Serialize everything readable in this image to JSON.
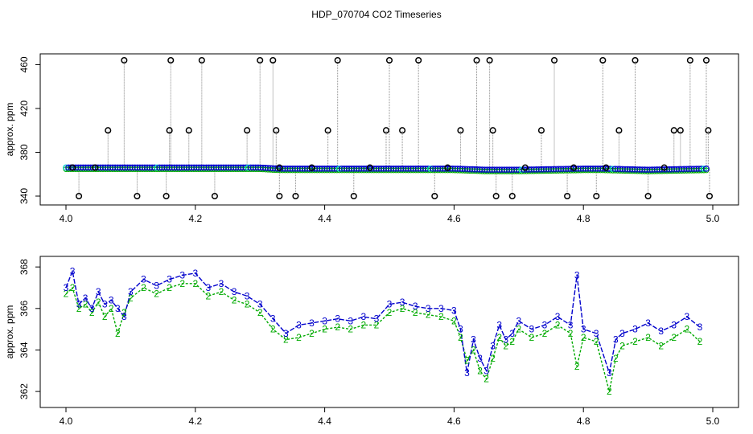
{
  "chart_data": [
    {
      "type": "scatter",
      "title": "HDP_070704  CO2 Timeseries",
      "xlabel": "",
      "ylabel": "approx. ppm",
      "xlim": [
        4.0,
        5.0
      ],
      "ylim": [
        340,
        464
      ],
      "xticks": [
        "4.0",
        "4.2",
        "4.4",
        "4.6",
        "4.8",
        "5.0"
      ],
      "yticks": [
        "340",
        "380",
        "420",
        "460"
      ],
      "colors": {
        "black_points": "#000000",
        "blue_points": "#0000cc",
        "green_points": "#00aa00",
        "cyan_points": "#00cccc",
        "spike_lines": "#888888"
      },
      "series": [
        {
          "description": "dense baseline points (blue/green/cyan circles)",
          "x": [
            4.0,
            4.05,
            4.1,
            4.15,
            4.2,
            4.25,
            4.3,
            4.33,
            4.4,
            4.5,
            4.6,
            4.65,
            4.7,
            4.8,
            4.83,
            4.9,
            4.99
          ],
          "y": [
            366,
            366,
            366,
            366,
            366,
            366,
            366,
            365,
            365,
            365,
            365,
            364,
            364,
            365,
            365,
            364,
            365
          ]
        },
        {
          "description": "black outlier circles",
          "x": [
            4.01,
            4.02,
            4.045,
            4.065,
            4.09,
            4.11,
            4.155,
            4.16,
            4.162,
            4.19,
            4.21,
            4.23,
            4.28,
            4.3,
            4.32,
            4.325,
            4.33,
            4.33,
            4.355,
            4.38,
            4.405,
            4.42,
            4.445,
            4.47,
            4.495,
            4.5,
            4.52,
            4.545,
            4.57,
            4.59,
            4.61,
            4.635,
            4.655,
            4.66,
            4.665,
            4.69,
            4.71,
            4.735,
            4.755,
            4.775,
            4.785,
            4.82,
            4.83,
            4.835,
            4.855,
            4.88,
            4.9,
            4.925,
            4.94,
            4.95,
            4.965,
            4.99,
            4.993,
            4.995
          ],
          "y": [
            366,
            340,
            366,
            400,
            464,
            340,
            340,
            400,
            464,
            400,
            464,
            340,
            400,
            464,
            464,
            400,
            366,
            340,
            340,
            366,
            400,
            464,
            340,
            366,
            400,
            464,
            400,
            464,
            340,
            366,
            400,
            464,
            464,
            400,
            340,
            340,
            366,
            400,
            464,
            340,
            366,
            340,
            464,
            366,
            400,
            464,
            340,
            366,
            400,
            400,
            464,
            464,
            400,
            340
          ]
        }
      ]
    },
    {
      "type": "line",
      "title": "",
      "xlabel": "",
      "ylabel": "approx. ppm",
      "xlim": [
        4.0,
        5.0
      ],
      "ylim": [
        361.5,
        368.2
      ],
      "xticks": [
        "4.0",
        "4.2",
        "4.4",
        "4.6",
        "4.8",
        "5.0"
      ],
      "yticks": [
        "362",
        "364",
        "366",
        "368"
      ],
      "markers": {
        "series_3": "3",
        "series_2": "2"
      },
      "colors": {
        "series_3": "#0000cc",
        "series_2": "#00aa00"
      },
      "series": [
        {
          "name": "3",
          "x": [
            4.0,
            4.01,
            4.02,
            4.03,
            4.04,
            4.05,
            4.06,
            4.07,
            4.08,
            4.09,
            4.1,
            4.12,
            4.14,
            4.16,
            4.18,
            4.2,
            4.22,
            4.24,
            4.26,
            4.28,
            4.3,
            4.32,
            4.34,
            4.36,
            4.38,
            4.4,
            4.42,
            4.44,
            4.46,
            4.48,
            4.5,
            4.52,
            4.54,
            4.56,
            4.58,
            4.6,
            4.61,
            4.62,
            4.63,
            4.64,
            4.65,
            4.66,
            4.67,
            4.68,
            4.69,
            4.7,
            4.72,
            4.74,
            4.76,
            4.78,
            4.79,
            4.8,
            4.82,
            4.84,
            4.85,
            4.86,
            4.88,
            4.9,
            4.92,
            4.94,
            4.96,
            4.98
          ],
          "y": [
            367.0,
            367.8,
            366.2,
            366.5,
            366.0,
            366.8,
            366.2,
            366.4,
            366.0,
            365.6,
            366.8,
            367.4,
            367.1,
            367.4,
            367.6,
            367.7,
            367.0,
            367.2,
            366.8,
            366.6,
            366.2,
            365.5,
            364.8,
            365.2,
            365.3,
            365.4,
            365.5,
            365.4,
            365.6,
            365.5,
            366.2,
            366.3,
            366.1,
            366.0,
            366.0,
            365.9,
            365.0,
            362.9,
            364.5,
            363.6,
            363.0,
            364.2,
            365.2,
            364.5,
            364.8,
            365.4,
            365.0,
            365.2,
            365.6,
            365.2,
            367.6,
            365.0,
            364.8,
            362.9,
            364.5,
            364.8,
            365.0,
            365.3,
            364.9,
            365.2,
            365.6,
            365.1
          ]
        },
        {
          "name": "2",
          "x": [
            4.0,
            4.01,
            4.02,
            4.03,
            4.04,
            4.05,
            4.06,
            4.07,
            4.08,
            4.09,
            4.1,
            4.12,
            4.14,
            4.16,
            4.18,
            4.2,
            4.22,
            4.24,
            4.26,
            4.28,
            4.3,
            4.32,
            4.34,
            4.36,
            4.38,
            4.4,
            4.42,
            4.44,
            4.46,
            4.48,
            4.5,
            4.52,
            4.54,
            4.56,
            4.58,
            4.6,
            4.61,
            4.62,
            4.63,
            4.64,
            4.65,
            4.66,
            4.67,
            4.68,
            4.69,
            4.7,
            4.72,
            4.74,
            4.76,
            4.78,
            4.79,
            4.8,
            4.82,
            4.84,
            4.85,
            4.86,
            4.88,
            4.9,
            4.92,
            4.94,
            4.96,
            4.98
          ],
          "y": [
            366.7,
            367.0,
            366.0,
            366.2,
            365.8,
            366.3,
            365.6,
            366.0,
            364.8,
            365.8,
            366.5,
            367.0,
            366.7,
            367.0,
            367.2,
            367.2,
            366.6,
            366.8,
            366.4,
            366.2,
            365.8,
            365.0,
            364.5,
            364.6,
            364.8,
            365.0,
            365.1,
            365.0,
            365.2,
            365.2,
            365.8,
            366.0,
            365.8,
            365.7,
            365.6,
            365.4,
            364.6,
            363.5,
            364.0,
            363.0,
            362.6,
            363.6,
            364.6,
            364.2,
            364.4,
            365.0,
            364.6,
            364.8,
            365.2,
            364.8,
            363.2,
            364.6,
            364.4,
            362.0,
            363.6,
            364.2,
            364.4,
            364.6,
            364.2,
            364.6,
            365.0,
            364.4
          ]
        }
      ]
    }
  ]
}
